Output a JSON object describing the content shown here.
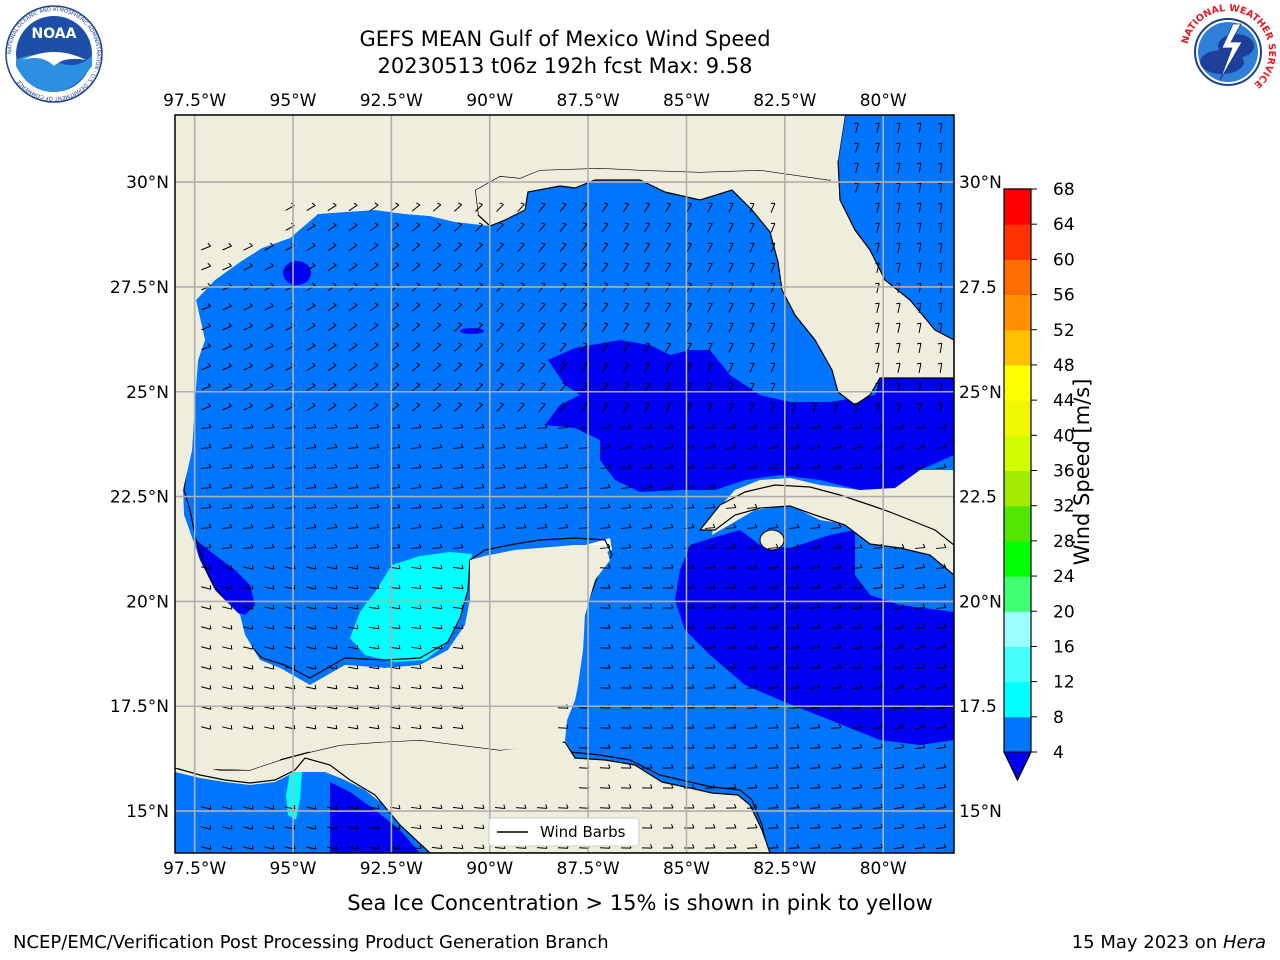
{
  "header": {
    "title_line1": "GEFS MEAN Gulf of Mexico Wind Speed",
    "title_line2": "20230513 t06z 192h fcst   Max: 9.58"
  },
  "logos": {
    "noaa_text": "NOAA",
    "noaa_ring_text": "NATIONAL OCEANIC AND ATMOSPHERIC ADMINISTRATION · U.S. DEPARTMENT OF COMMERCE",
    "nws_ring_text": "NATIONAL WEATHER SERVICE"
  },
  "map": {
    "lon_ticks": [
      "97.5°W",
      "95°W",
      "92.5°W",
      "90°W",
      "87.5°W",
      "85°W",
      "82.5°W",
      "80°W"
    ],
    "lat_ticks_left": [
      "30°N",
      "27.5°N",
      "25°N",
      "22.5°N",
      "20°N",
      "17.5°N",
      "15°N"
    ],
    "lat_ticks_right": [
      "30°N",
      "27.5",
      "25°N",
      "22.5",
      "20°N",
      "17.5",
      "15°N"
    ],
    "lon_range": [
      -98,
      -78.2
    ],
    "lat_range": [
      14,
      31.6
    ],
    "legend_label": "Wind Barbs",
    "land_color": "#efeedc",
    "grid": true
  },
  "colorbar": {
    "label": "Wind Speed [m/s]",
    "ticks": [
      "68",
      "64",
      "60",
      "56",
      "52",
      "48",
      "44",
      "40",
      "36",
      "32",
      "28",
      "24",
      "20",
      "16",
      "12",
      "8",
      "4"
    ],
    "colors": [
      "#0000f2",
      "#0076ff",
      "#00ffff",
      "#45ffff",
      "#9affff",
      "#40ff70",
      "#00ff00",
      "#52e600",
      "#a3ee00",
      "#d0fd00",
      "#f0f800",
      "#ffff00",
      "#ffc000",
      "#ff9100",
      "#ff6c00",
      "#ff3200",
      "#ff0000"
    ],
    "extend_color": "#0000f2"
  },
  "caption": "Sea Ice Concentration > 15% is shown in pink to yellow",
  "footer": {
    "left": "NCEP/EMC/Verification Post Processing Product Generation Branch",
    "right_prefix": "15 May 2023 on ",
    "right_machine": "Hera"
  }
}
